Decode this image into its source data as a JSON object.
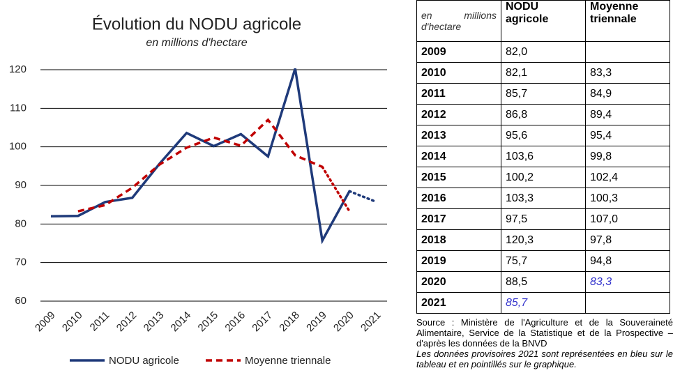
{
  "chart_data": {
    "type": "line",
    "title": "Évolution du NODU agricole",
    "subtitle": "en millions d'hectare",
    "categories": [
      "2009",
      "2010",
      "2011",
      "2012",
      "2013",
      "2014",
      "2015",
      "2016",
      "2017",
      "2018",
      "2019",
      "2020",
      "2021"
    ],
    "series": [
      {
        "name": "NODU agricole",
        "color": "#1f3a7a",
        "style": "solid",
        "dotted_from": 11,
        "values": [
          82.0,
          82.1,
          85.7,
          86.8,
          95.6,
          103.6,
          100.2,
          103.3,
          97.5,
          120.3,
          75.7,
          88.5,
          85.7
        ]
      },
      {
        "name": "Moyenne triennale",
        "color": "#c00000",
        "style": "dashed",
        "dotted_from": 10,
        "values": [
          null,
          83.3,
          84.9,
          89.4,
          95.4,
          99.8,
          102.4,
          100.3,
          107.0,
          97.8,
          94.8,
          83.3,
          null
        ]
      }
    ],
    "ylim": [
      60,
      120
    ],
    "yticks": [
      60,
      70,
      80,
      90,
      100,
      110,
      120
    ],
    "grid": true
  },
  "table": {
    "header": [
      "en millions d'hectare",
      "NODU agricole",
      "Moyenne triennale"
    ],
    "rows": [
      [
        "2009",
        "82,0",
        null
      ],
      [
        "2010",
        "82,1",
        "83,3"
      ],
      [
        "2011",
        "85,7",
        "84,9"
      ],
      [
        "2012",
        "86,8",
        "89,4"
      ],
      [
        "2013",
        "95,6",
        "95,4"
      ],
      [
        "2014",
        "103,6",
        "99,8"
      ],
      [
        "2015",
        "100,2",
        "102,4"
      ],
      [
        "2016",
        "103,3",
        "100,3"
      ],
      [
        "2017",
        "97,5",
        "107,0"
      ],
      [
        "2018",
        "120,3",
        "97,8"
      ],
      [
        "2019",
        "75,7",
        "94,8"
      ],
      [
        "2020",
        "88,5",
        "83,3"
      ],
      [
        "2021",
        "85,7",
        null
      ]
    ],
    "provisional_cells": [
      "11.2",
      "12.1"
    ],
    "provisional_color": "#3333cc",
    "source": "Source : Ministère de l'Agriculture et de la Souveraineté Alimentaire, Service de la Statistique et de la Prospective – d'après les données de la BNVD",
    "note": "Les données provisoires 2021 sont représentées en bleu sur le tableau et en pointillés sur le graphique."
  }
}
